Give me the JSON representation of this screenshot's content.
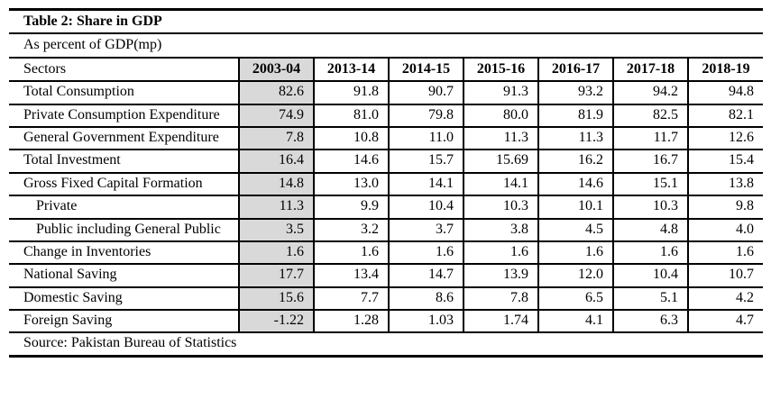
{
  "page": {
    "background_color": "#ffffff",
    "text_color": "#000000"
  },
  "table": {
    "title": "Table 2: Share in GDP",
    "subtitle": "As percent of GDP(mp)",
    "source": "Source: Pakistan Bureau of Statistics",
    "border_color": "#000000",
    "shaded_column_color": "#d9d9d9",
    "shaded_column_index": 1,
    "columns": [
      "Sectors",
      "2003-04",
      "2013-14",
      "2014-15",
      "2015-16",
      "2016-17",
      "2017-18",
      "2018-19"
    ],
    "rows": [
      {
        "label": "Total Consumption",
        "indent": false,
        "values": [
          "82.6",
          "91.8",
          "90.7",
          "91.3",
          "93.2",
          "94.2",
          "94.8"
        ]
      },
      {
        "label": "Private Consumption Expenditure",
        "indent": false,
        "values": [
          "74.9",
          "81.0",
          "79.8",
          "80.0",
          "81.9",
          "82.5",
          "82.1"
        ]
      },
      {
        "label": "General Government Expenditure",
        "indent": false,
        "values": [
          "7.8",
          "10.8",
          "11.0",
          "11.3",
          "11.3",
          "11.7",
          "12.6"
        ]
      },
      {
        "label": "Total Investment",
        "indent": false,
        "values": [
          "16.4",
          "14.6",
          "15.7",
          "15.69",
          "16.2",
          "16.7",
          "15.4"
        ]
      },
      {
        "label": "Gross Fixed Capital Formation",
        "indent": false,
        "values": [
          "14.8",
          "13.0",
          "14.1",
          "14.1",
          "14.6",
          "15.1",
          "13.8"
        ]
      },
      {
        "label": "Private",
        "indent": true,
        "values": [
          "11.3",
          "9.9",
          "10.4",
          "10.3",
          "10.1",
          "10.3",
          "9.8"
        ]
      },
      {
        "label": "Public including General Public",
        "indent": true,
        "values": [
          "3.5",
          "3.2",
          "3.7",
          "3.8",
          "4.5",
          "4.8",
          "4.0"
        ]
      },
      {
        "label": "Change in Inventories",
        "indent": false,
        "values": [
          "1.6",
          "1.6",
          "1.6",
          "1.6",
          "1.6",
          "1.6",
          "1.6"
        ]
      },
      {
        "label": "National Saving",
        "indent": false,
        "values": [
          "17.7",
          "13.4",
          "14.7",
          "13.9",
          "12.0",
          "10.4",
          "10.7"
        ]
      },
      {
        "label": "Domestic Saving",
        "indent": false,
        "values": [
          "15.6",
          "7.7",
          "8.6",
          "7.8",
          "6.5",
          "5.1",
          "4.2"
        ]
      },
      {
        "label": "Foreign Saving",
        "indent": false,
        "values": [
          "-1.22",
          "1.28",
          "1.03",
          "1.74",
          "4.1",
          "6.3",
          "4.7"
        ]
      }
    ]
  }
}
